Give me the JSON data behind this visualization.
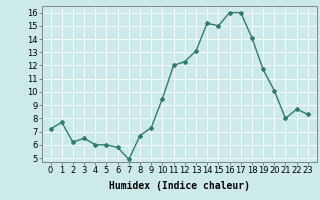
{
  "x": [
    0,
    1,
    2,
    3,
    4,
    5,
    6,
    7,
    8,
    9,
    10,
    11,
    12,
    13,
    14,
    15,
    16,
    17,
    18,
    19,
    20,
    21,
    22,
    23
  ],
  "y": [
    7.2,
    7.7,
    6.2,
    6.5,
    6.0,
    6.0,
    5.8,
    4.9,
    6.7,
    7.3,
    9.5,
    12.0,
    12.3,
    13.1,
    15.2,
    15.0,
    16.0,
    16.0,
    14.1,
    11.7,
    10.1,
    8.0,
    8.7,
    8.3
  ],
  "line_color": "#2e7d6e",
  "marker": "D",
  "marker_size": 2,
  "bg_color": "#cceaea",
  "grid_color": "#ffffff",
  "xlabel": "Humidex (Indice chaleur)",
  "ylim_min": 4.7,
  "ylim_max": 16.5,
  "yticks": [
    5,
    6,
    7,
    8,
    9,
    10,
    11,
    12,
    13,
    14,
    15,
    16
  ],
  "xticks": [
    0,
    1,
    2,
    3,
    4,
    5,
    6,
    7,
    8,
    9,
    10,
    11,
    12,
    13,
    14,
    15,
    16,
    17,
    18,
    19,
    20,
    21,
    22,
    23
  ],
  "xlabel_fontsize": 7,
  "tick_fontsize": 6,
  "line_width": 1.0
}
